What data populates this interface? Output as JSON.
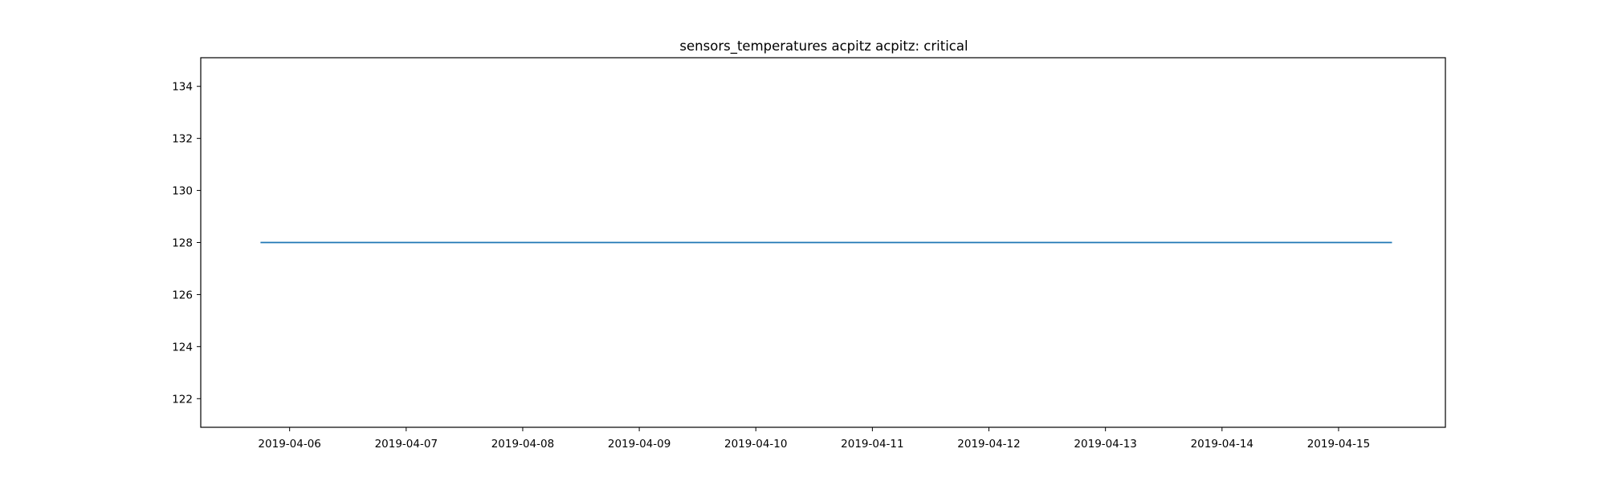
{
  "chart_data": {
    "type": "line",
    "title": "sensors_temperatures acpitz acpitz:  critical",
    "xlabel": "",
    "ylabel": "",
    "x_tick_labels": [
      "2019-04-06",
      "2019-04-07",
      "2019-04-08",
      "2019-04-09",
      "2019-04-10",
      "2019-04-11",
      "2019-04-12",
      "2019-04-13",
      "2019-04-14",
      "2019-04-15"
    ],
    "y_ticks": [
      122,
      124,
      126,
      128,
      130,
      132,
      134
    ],
    "xlim": [
      "2019-04-05 05:42",
      "2019-04-15 22:00"
    ],
    "ylim": [
      120.9,
      135.1
    ],
    "grid": false,
    "series": [
      {
        "color": "#1f77b4",
        "x": [
          "2019-04-05 18:00",
          "2019-04-15 11:00"
        ],
        "y": [
          128,
          128
        ]
      }
    ]
  }
}
